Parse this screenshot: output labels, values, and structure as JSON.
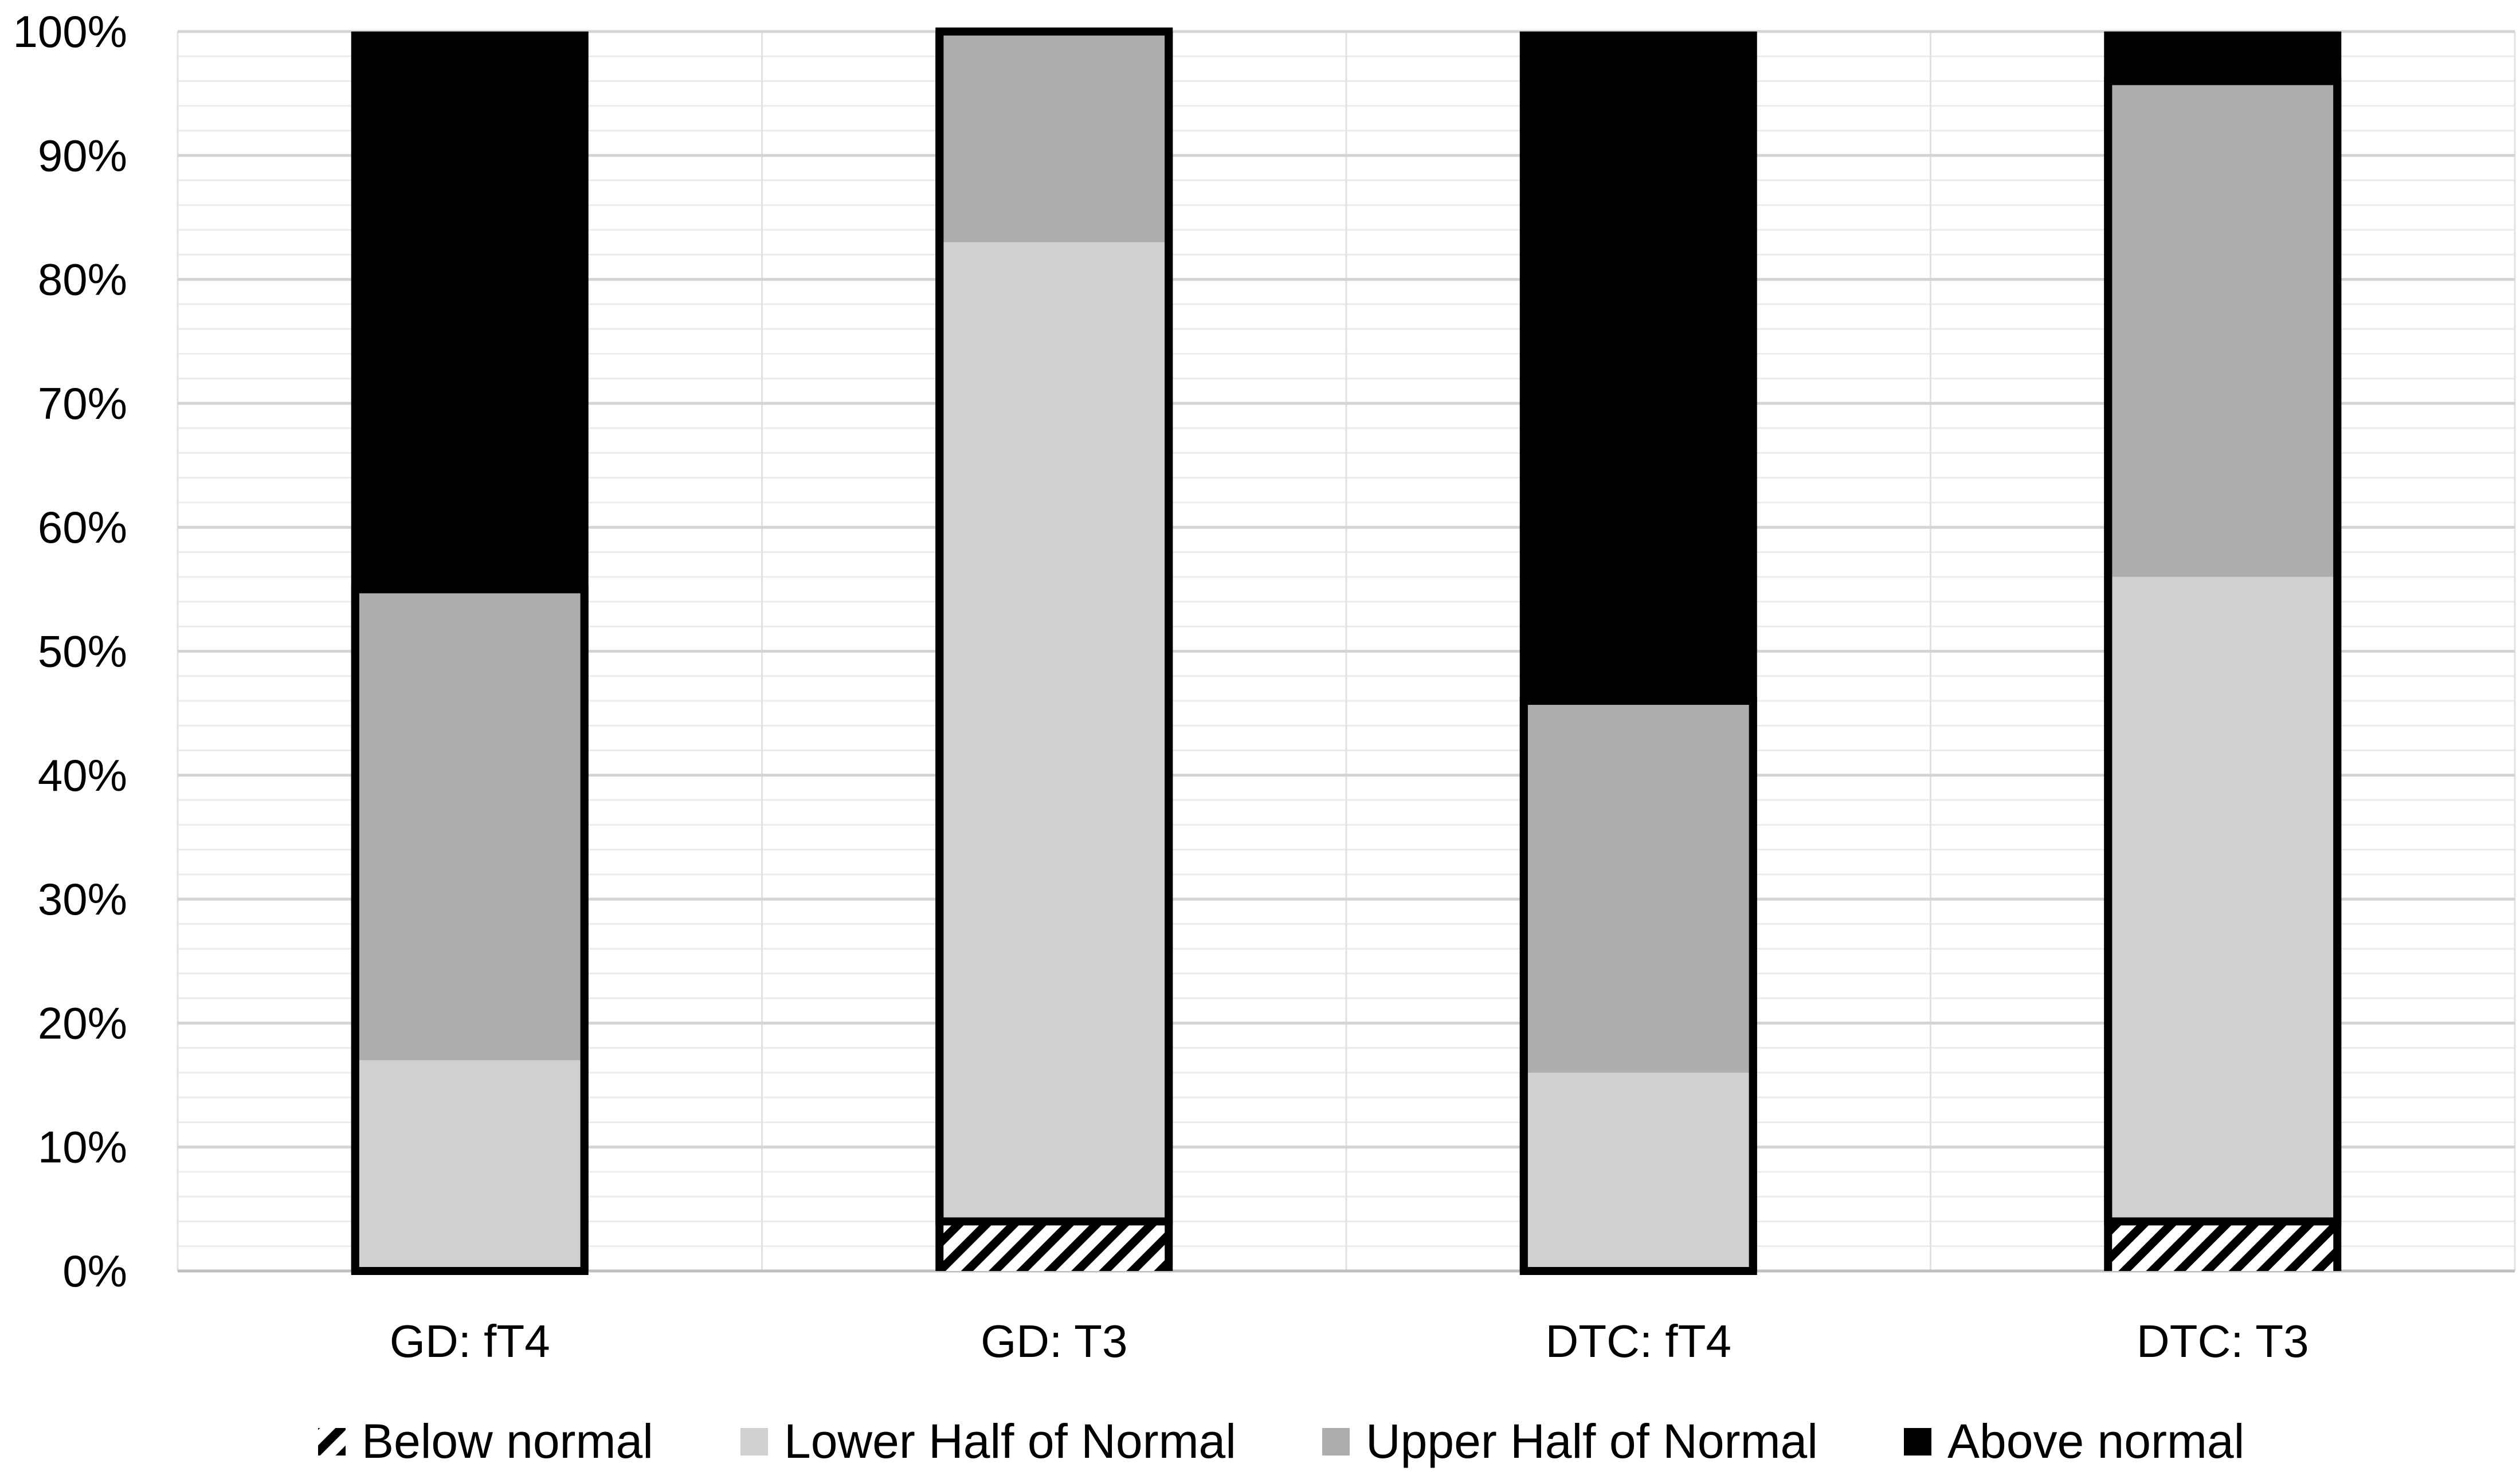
{
  "chart_data": {
    "type": "bar",
    "stacked": true,
    "title": "",
    "xlabel": "",
    "ylabel": "",
    "ylim": [
      0,
      100
    ],
    "ytick_step": 10,
    "ytick_format": "{v}%",
    "grid": true,
    "legend_position": "bottom",
    "categories": [
      "GD: fT4",
      "GD: T3",
      "DTC: fT4",
      "DTC: T3"
    ],
    "series": [
      {
        "name": "Below normal",
        "color": "#000000",
        "pattern": "hatch",
        "values": [
          0,
          4,
          0,
          4
        ]
      },
      {
        "name": "Lower Half of Normal",
        "color": "#d0d0d0",
        "values": [
          17,
          79,
          16,
          52
        ]
      },
      {
        "name": "Upper Half of Normal",
        "color": "#adadad",
        "values": [
          38,
          17,
          30,
          40
        ]
      },
      {
        "name": "Above normal",
        "color": "#000000",
        "values": [
          45,
          0,
          54,
          4
        ]
      }
    ],
    "outline_series": [
      "Lower Half of Normal",
      "Upper Half of Normal"
    ]
  }
}
